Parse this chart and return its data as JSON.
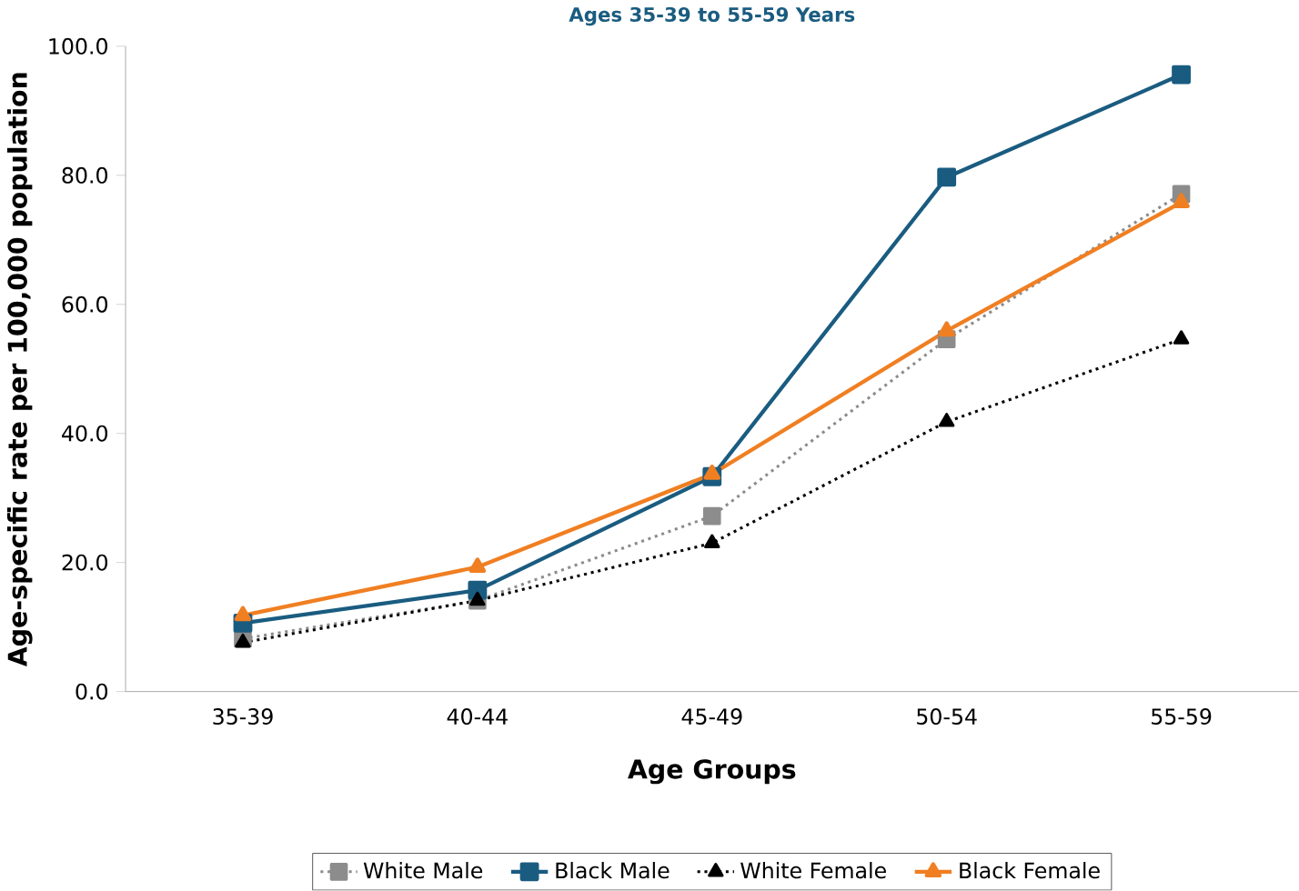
{
  "chart_data": {
    "type": "line",
    "title": "Ages 35-39 to 55-59 Years",
    "xlabel": "Age Groups",
    "ylabel": "Age-specific rate per 100,000 population",
    "categories": [
      "35-39",
      "40-44",
      "45-49",
      "50-54",
      "55-59"
    ],
    "ylim": [
      0,
      100
    ],
    "yticks": [
      {
        "value": 0,
        "label": "0.0"
      },
      {
        "value": 20,
        "label": "20.0"
      },
      {
        "value": 40,
        "label": "40.0"
      },
      {
        "value": 60,
        "label": "60.0"
      },
      {
        "value": 80,
        "label": "80.0"
      },
      {
        "value": 100,
        "label": "100.0"
      }
    ],
    "legend": "bottom",
    "grid": false,
    "series": [
      {
        "name": "White Male",
        "color": "#8c8c8c",
        "marker": "square",
        "line_style": "dotted",
        "values": [
          8.2,
          14.1,
          27.2,
          54.6,
          77.1
        ]
      },
      {
        "name": "Black Male",
        "color": "#1a5c80",
        "marker": "square",
        "line_style": "solid",
        "values": [
          10.6,
          15.7,
          33.3,
          79.7,
          95.6
        ]
      },
      {
        "name": "White Female",
        "color": "#000000",
        "marker": "triangle",
        "line_style": "dotted",
        "values": [
          7.6,
          14.1,
          23.0,
          41.8,
          54.6
        ]
      },
      {
        "name": "Black Female",
        "color": "#f07f22",
        "marker": "triangle",
        "line_style": "solid",
        "values": [
          11.8,
          19.3,
          33.7,
          55.9,
          75.8
        ]
      }
    ]
  }
}
